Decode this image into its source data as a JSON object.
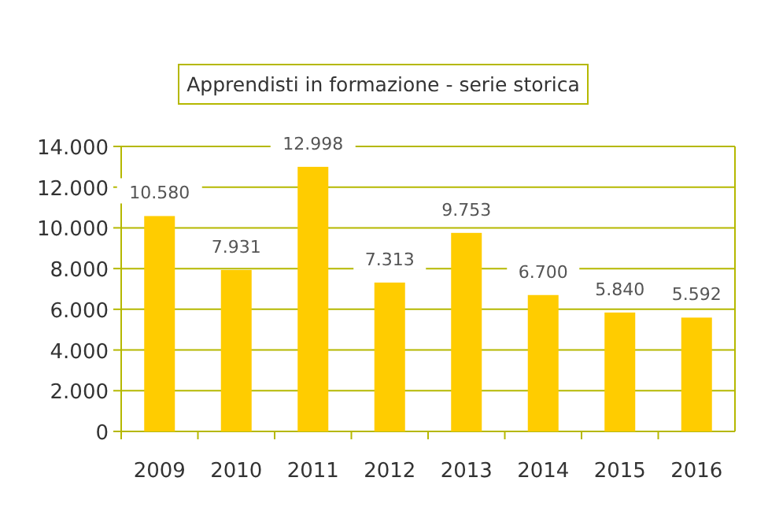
{
  "chart_data": {
    "type": "bar",
    "title": "Apprendisti in formazione - serie storica",
    "categories": [
      "2009",
      "2010",
      "2011",
      "2012",
      "2013",
      "2014",
      "2015",
      "2016"
    ],
    "values": [
      10580,
      7931,
      12998,
      7313,
      9753,
      6700,
      5840,
      5592
    ],
    "value_labels": [
      "10.580",
      "7.931",
      "12.998",
      "7.313",
      "9.753",
      "6.700",
      "5.840",
      "5.592"
    ],
    "color": "#ffcc00",
    "ylim": [
      0,
      14000
    ],
    "yticks": [
      {
        "value": 0,
        "label": "0"
      },
      {
        "value": 2000,
        "label": "2.000"
      },
      {
        "value": 4000,
        "label": "4.000"
      },
      {
        "value": 6000,
        "label": "6.000"
      },
      {
        "value": 8000,
        "label": "8.000"
      },
      {
        "value": 10000,
        "label": "10.000"
      },
      {
        "value": 12000,
        "label": "12.000"
      },
      {
        "value": 14000,
        "label": "14.000"
      }
    ],
    "grid": "y",
    "legend": false
  }
}
